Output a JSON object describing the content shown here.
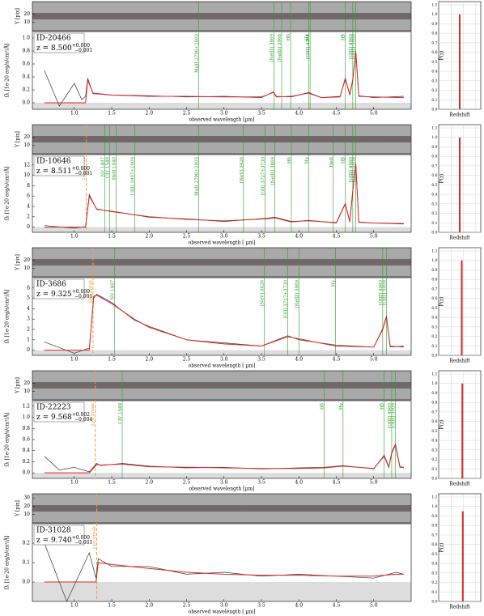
{
  "chart_data": {
    "type": "line",
    "xlim": [
      0.44,
      5.5
    ],
    "xticks": [
      {
        "value": 1.0,
        "label": "1.0"
      },
      1.5,
      {
        "value": 2.0,
        "label": "2.0"
      },
      2.5,
      {
        "value": 3.0,
        "label": "3.0"
      },
      3.5,
      {
        "value": 4.0,
        "label": "4.0"
      },
      4.5,
      {
        "value": 5.0,
        "label": "5.0"
      }
    ],
    "strip_ylim": [
      0,
      35
    ],
    "pz_xlim": [
      0,
      17
    ],
    "pz_xticks": [
      5,
      10,
      15
    ],
    "pz_ylim": [
      0,
      1.1
    ],
    "pz_yticks": [
      {
        "value": 0,
        "label": "0.0"
      },
      0.1,
      0.2,
      0.3,
      0.4,
      0.5,
      0.6,
      0.7,
      0.8,
      0.9,
      {
        "value": 1,
        "label": "1.0"
      },
      1.1
    ],
    "data_color": "#333333",
    "model_color": "#e02424",
    "line_color": "#2a9d2a",
    "break_color": "#f0a040",
    "panels": [
      {
        "id": "ID-20466",
        "z_label": "z = 8.500",
        "z_up": "+0.000",
        "z_down": "−0.001",
        "xlabel": "observed wavelength [µm]",
        "ylabel": "fλ [1e-20 erg/s/cm²/Å]",
        "strip_label": "Y [pix]",
        "strip_yticks": [
          10,
          20
        ],
        "pz_label": "P(z)",
        "pz_xlabel": "Redshift",
        "pz_z": 8.5,
        "pz_p": 1.0,
        "ylim": [
          -0.1,
          1.1
        ],
        "yticks": [
          {
            "value": 0,
            "label": "0.0"
          },
          0.2,
          0.4,
          0.6,
          0.8,
          {
            "value": 1,
            "label": "1.0"
          }
        ],
        "x": [
          0.6,
          0.8,
          1.0,
          1.1,
          1.15,
          1.18,
          1.25,
          1.5,
          2.0,
          2.5,
          3.0,
          3.5,
          3.66,
          3.7,
          3.9,
          4.13,
          4.3,
          4.55,
          4.62,
          4.68,
          4.72,
          4.76,
          4.8,
          5.0,
          5.4
        ],
        "data": [
          0.5,
          -0.05,
          0.3,
          0.05,
          0.1,
          0.38,
          0.14,
          0.12,
          0.11,
          0.09,
          0.1,
          0.08,
          0.17,
          0.1,
          0.09,
          0.16,
          0.08,
          0.1,
          0.36,
          0.13,
          0.37,
          0.8,
          0.11,
          0.08,
          0.1
        ],
        "model": [
          0,
          0,
          0,
          0,
          0,
          0.35,
          0.15,
          0.12,
          0.1,
          0.1,
          0.09,
          0.09,
          0.16,
          0.09,
          0.1,
          0.15,
          0.08,
          0.09,
          0.38,
          0.12,
          0.35,
          0.78,
          0.1,
          0.09,
          0.08
        ],
        "lines": [
          {
            "label": "MgII 2796+2803",
            "x": 2.66
          },
          {
            "label": "[NeIII] 3869",
            "x": 3.67
          },
          {
            "label": "[NeIII] 3968",
            "x": 3.77
          },
          {
            "label": "Hδ",
            "x": 3.89
          },
          {
            "label": "Hγ",
            "x": 4.13
          },
          {
            "label": "[OIII] 4364",
            "x": 4.15
          },
          {
            "label": "Hβ",
            "x": 4.62
          },
          {
            "label": "[OIII] 4960",
            "x": 4.72
          },
          {
            "label": "[OIII] 5008",
            "x": 4.76
          }
        ]
      },
      {
        "id": "ID-10646",
        "z_label": "z = 8.511",
        "z_up": "+0.000",
        "z_down": "−0.001",
        "xlabel": "observed wavelength [ µm]",
        "ylabel": "fλ [1e-20 erg/s/cm²/Å]",
        "strip_label": "Y [pix]",
        "strip_yticks": [
          10,
          20
        ],
        "pz_label": "P(z)",
        "pz_xlabel": "Redshift",
        "pz_z": 8.51,
        "pz_p": 1.0,
        "ylim": [
          -1,
          14
        ],
        "yticks": [
          0,
          2,
          4,
          6,
          8,
          10,
          12
        ],
        "x": [
          0.6,
          1.0,
          1.15,
          1.2,
          1.3,
          1.5,
          2.0,
          2.5,
          3.0,
          3.55,
          3.68,
          3.9,
          4.13,
          4.5,
          4.62,
          4.68,
          4.72,
          4.76,
          4.8,
          5.0,
          5.4
        ],
        "data": [
          0.3,
          -0.2,
          0.1,
          6.3,
          3.4,
          3.1,
          1.9,
          1.6,
          1.1,
          1.7,
          1.9,
          1.1,
          1.2,
          0.9,
          4.6,
          1.1,
          7.2,
          12.3,
          0.9,
          0.8,
          0.6
        ],
        "model": [
          0,
          0,
          0,
          6,
          3.5,
          3,
          2,
          1.5,
          1.2,
          1.6,
          1.8,
          1,
          1.3,
          0.8,
          4.5,
          1,
          7,
          12,
          1,
          0.8,
          0.7
        ],
        "break": {
          "label": "Lyα break",
          "x": 1.16
        },
        "lines": [
          {
            "label": "NV 1487",
            "x": 1.41
          },
          {
            "label": "CIV 1549",
            "x": 1.47
          },
          {
            "label": "HeII 1640",
            "x": 1.56
          },
          {
            "label": "CIII] 1907+1909",
            "x": 1.81
          },
          {
            "label": "MgII 2796+2803",
            "x": 2.66
          },
          {
            "label": "[NeV] 3426",
            "x": 3.26
          },
          {
            "label": "[OII] 3727+3730",
            "x": 3.55
          },
          {
            "label": "[NeIII] 3869",
            "x": 3.68
          },
          {
            "label": "Hδ",
            "x": 3.9
          },
          {
            "label": "Hγ",
            "x": 4.13
          },
          {
            "label": "HeII",
            "x": 4.46
          },
          {
            "label": "Hβ",
            "x": 4.62
          },
          {
            "label": "[OIII] 4960",
            "x": 4.72
          },
          {
            "label": "[OIII] 5008",
            "x": 4.76
          }
        ]
      },
      {
        "id": "ID-3686",
        "z_label": "z = 9.325",
        "z_up": "+0.000",
        "z_down": "−0.001",
        "xlabel": "observed wavelength [ µm]",
        "ylabel": "fλ [1e-20 erg/s/cm²/Å]",
        "strip_label": "Y [pix]",
        "strip_yticks": [
          10,
          20
        ],
        "pz_label": "P(z)",
        "pz_xlabel": "Redshift",
        "pz_z": 9.33,
        "pz_p": 1.0,
        "ylim": [
          -0.5,
          7
        ],
        "yticks": [
          0,
          1,
          2,
          3,
          4,
          5,
          6
        ],
        "x": [
          0.6,
          1.0,
          1.2,
          1.26,
          1.3,
          1.5,
          1.8,
          2.0,
          2.5,
          3.0,
          3.5,
          3.85,
          4.0,
          4.49,
          5.0,
          5.12,
          5.17,
          5.22,
          5.4
        ],
        "data": [
          0.8,
          -0.3,
          0.2,
          5.0,
          5.4,
          4.6,
          2.9,
          2.3,
          1.0,
          0.7,
          0.4,
          1.4,
          1.0,
          0.5,
          0.3,
          2.1,
          3.3,
          0.3,
          0.4
        ],
        "model": [
          0,
          0,
          0,
          5.2,
          5.3,
          4.5,
          3,
          2.2,
          1,
          0.6,
          0.4,
          1.3,
          1.1,
          0.4,
          0.3,
          2,
          3.2,
          0.4,
          0.3
        ],
        "break": {
          "label": "Lyα break",
          "x": 1.25
        },
        "lines": [
          {
            "label": "NV 1487",
            "x": 1.54
          },
          {
            "label": "[NeV] 3426",
            "x": 3.54
          },
          {
            "label": "[OII] 3727+3730",
            "x": 3.85
          },
          {
            "label": "[NeIII] 3869",
            "x": 4.0
          },
          {
            "label": "Hγ",
            "x": 4.49
          },
          {
            "label": "[OIII] 4960",
            "x": 5.12
          },
          {
            "label": "[OIII] 5008",
            "x": 5.17
          }
        ]
      },
      {
        "id": "ID-22223",
        "z_label": "z = 9.568",
        "z_up": "+0.002",
        "z_down": "−0.004",
        "xlabel": "observed wavelength [µm]",
        "ylabel": "fλ [1e-20 erg/s/cm²/Å]",
        "strip_label": "Y [pix]",
        "strip_yticks": [
          10,
          20
        ],
        "pz_label": "P(z)",
        "pz_xlabel": "Redshift",
        "pz_z": 9.57,
        "pz_p": 1.0,
        "ylim": [
          -0.1,
          1.3
        ],
        "yticks": [
          {
            "value": 0,
            "label": "0.0"
          },
          0.2,
          0.4,
          0.6,
          0.8,
          {
            "value": 1,
            "label": "1.0"
          },
          1.2
        ],
        "x": [
          0.6,
          0.8,
          1.0,
          1.2,
          1.3,
          1.35,
          1.64,
          2.0,
          2.5,
          3.0,
          3.5,
          4.0,
          4.34,
          4.59,
          5.0,
          5.14,
          5.2,
          5.24,
          5.29,
          5.35,
          5.4
        ],
        "data": [
          0.3,
          0.05,
          0.1,
          0.02,
          0.17,
          0.13,
          0.17,
          0.12,
          0.09,
          0.1,
          0.07,
          0.09,
          0.1,
          0.13,
          0.07,
          0.32,
          0.11,
          0.37,
          0.52,
          0.12,
          0.09
        ],
        "model": [
          0,
          0,
          0,
          0,
          0.15,
          0.14,
          0.16,
          0.11,
          0.1,
          0.09,
          0.08,
          0.08,
          0.09,
          0.12,
          0.08,
          0.3,
          0.1,
          0.35,
          0.5,
          0.1,
          0.1
        ],
        "break": {
          "label": "Lyα break",
          "x": 1.28
        },
        "lines": [
          {
            "label": "CIV 1549",
            "x": 1.64
          },
          {
            "label": "Hδ",
            "x": 4.34
          },
          {
            "label": "Hγ",
            "x": 4.59
          },
          {
            "label": "Hβ",
            "x": 5.14
          },
          {
            "label": "[OIII] 4960",
            "x": 5.24
          },
          {
            "label": "[OIII] 5008",
            "x": 5.29
          }
        ]
      },
      {
        "id": "ID-31028",
        "z_label": "z = 9.740",
        "z_up": "+0.000",
        "z_down": "−0.001",
        "xlabel": "observed wavelength [ µm]",
        "ylabel": "fλ [1e-20 erg/s/cm²/Å]",
        "strip_label": "Y [pix]",
        "strip_yticks": [
          10,
          20,
          30
        ],
        "pz_label": "P(z)",
        "pz_xlabel": "Redshift",
        "pz_z": 9.74,
        "pz_p": 0.95,
        "ylim": [
          -0.1,
          0.3
        ],
        "yticks": [
          {
            "value": 0,
            "label": "0.0"
          },
          0.1,
          0.2
        ],
        "x": [
          0.6,
          0.9,
          1.2,
          1.29,
          1.32,
          1.5,
          2.0,
          2.5,
          3.0,
          3.5,
          4.0,
          4.5,
          5.0,
          5.3,
          5.4
        ],
        "data": [
          0.2,
          -0.1,
          0.15,
          0.02,
          0.12,
          0.08,
          0.08,
          0.04,
          0.05,
          0.03,
          0.04,
          0.03,
          0.02,
          0.05,
          0.04
        ],
        "model": [
          0,
          0,
          0,
          0,
          0.1,
          0.09,
          0.07,
          0.05,
          0.04,
          0.035,
          0.035,
          0.03,
          0.03,
          0.04,
          0.04
        ],
        "break": {
          "label": "Lyα break",
          "x": 1.3
        },
        "lines": []
      }
    ]
  }
}
